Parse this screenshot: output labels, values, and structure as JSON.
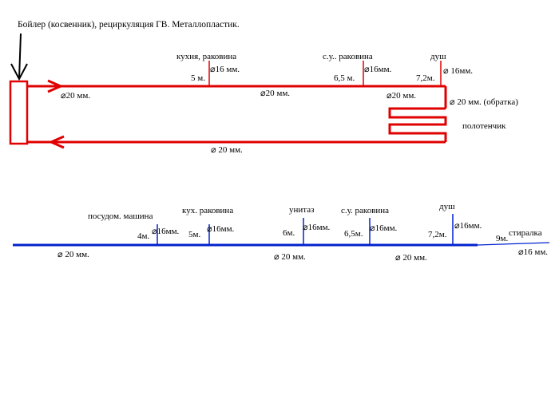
{
  "title": "Бойлер (косвенник), рециркуляция ГВ. Металлопластик.",
  "hot_water": {
    "color": "#e00000",
    "main_diameter_top": "⌀20 мм.",
    "mid_diameter_top": "⌀20 мм.",
    "end_diameter_top": "⌀20 мм.",
    "return_label": "⌀ 20 мм. (обратка)",
    "return_diameter_bottom": "⌀ 20 мм.",
    "towel_label": "полотенчик",
    "branches": [
      {
        "name": "кухня, раковина",
        "distance": "5 м.",
        "diameter": "⌀16 мм."
      },
      {
        "name": "с.у.. раковина",
        "distance": "6,5 м.",
        "diameter": "⌀16мм."
      },
      {
        "name": "душ",
        "distance": "7,2м.",
        "diameter": "⌀ 16мм."
      }
    ]
  },
  "cold_water": {
    "color": "#0022cc",
    "segment_diameters": [
      "⌀ 20 мм.",
      "⌀ 20 мм.",
      "⌀ 20 мм."
    ],
    "branches": [
      {
        "name": "посудом. машина",
        "distance": "4м.",
        "diameter": "⌀16мм."
      },
      {
        "name": "кух. раковина",
        "distance": "5м.",
        "diameter": "⌀16мм."
      },
      {
        "name": "унитаз",
        "distance": "6м.",
        "diameter": "⌀16мм."
      },
      {
        "name": "с.у. раковина",
        "distance": "6,5м.",
        "diameter": "⌀16мм."
      },
      {
        "name": "душ",
        "distance": "7,2м.",
        "diameter": "⌀16мм."
      },
      {
        "name": "стиралка",
        "distance": "9м.",
        "diameter": "⌀16 мм."
      }
    ]
  }
}
